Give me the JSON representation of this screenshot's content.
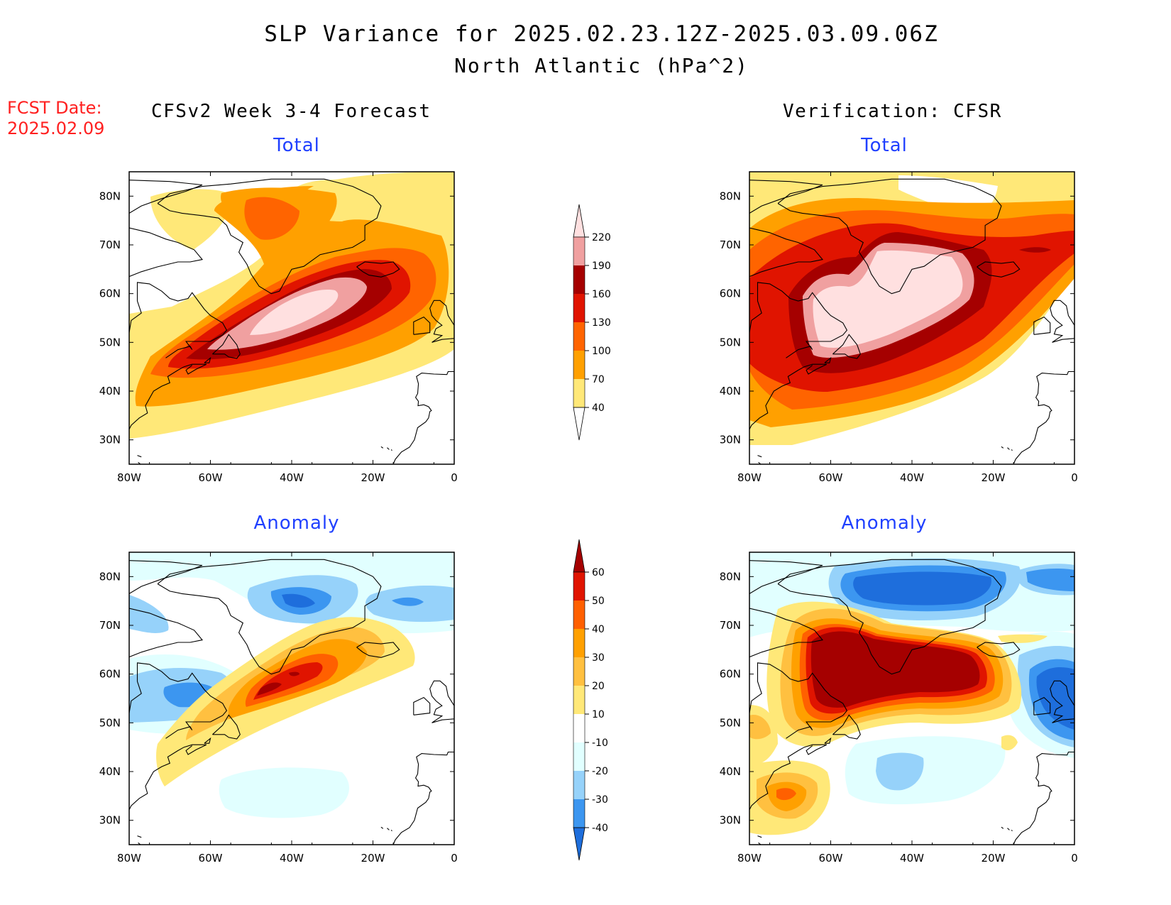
{
  "header": {
    "title_line1": "SLP Variance for 2025.02.23.12Z-2025.03.09.06Z",
    "title_line2": "North Atlantic (hPa^2)",
    "fcst_label": "FCST Date:",
    "fcst_date": "2025.02.09",
    "left_column_title": "CFSv2 Week 3-4 Forecast",
    "right_column_title": "Verification: CFSR"
  },
  "panels": {
    "forecast_total": {
      "subtitle": "Total"
    },
    "verification_total": {
      "subtitle": "Total"
    },
    "forecast_anomaly": {
      "subtitle": "Anomaly"
    },
    "verification_anomaly": {
      "subtitle": "Anomaly"
    }
  },
  "axes": {
    "lon_labels": [
      "80W",
      "60W",
      "40W",
      "20W",
      "0"
    ],
    "lat_labels": [
      "80N",
      "70N",
      "60N",
      "50N",
      "40N",
      "30N"
    ],
    "lon_range_deg": [
      -80,
      0
    ],
    "lat_range_deg": [
      25,
      85
    ]
  },
  "colorbars": {
    "total": {
      "levels": [
        "40",
        "70",
        "100",
        "130",
        "160",
        "190",
        "220"
      ],
      "colors": [
        "#ffffff",
        "#ffe878",
        "#ffa000",
        "#ff6400",
        "#e01400",
        "#a50000",
        "#f0a0a0",
        "#ffe0e0"
      ]
    },
    "anomaly": {
      "levels": [
        "-40",
        "-30",
        "-20",
        "-10",
        "10",
        "20",
        "30",
        "40",
        "50",
        "60"
      ],
      "colors": [
        "#1e6edc",
        "#3c96f0",
        "#96d2fa",
        "#e1ffff",
        "#ffffff",
        "#ffe878",
        "#ffc040",
        "#ffa000",
        "#ff6000",
        "#e01400",
        "#a50000"
      ]
    }
  }
}
